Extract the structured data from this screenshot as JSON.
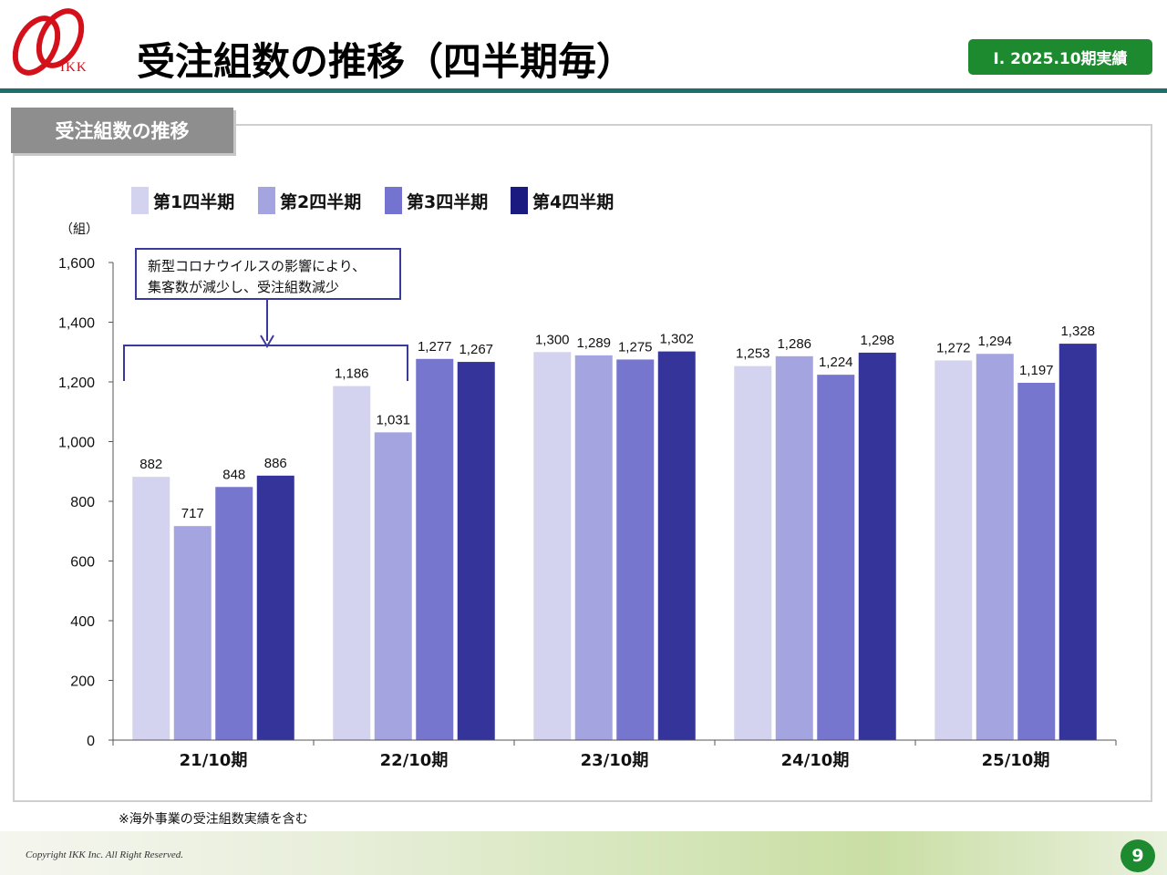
{
  "header": {
    "title": "受注組数の推移（四半期毎）",
    "badge": "Ⅰ. 2025.10期実績",
    "logo_text": "IKK"
  },
  "section_tab": "受注組数の推移",
  "callout_text": [
    "新型コロナウイルスの影響により、",
    "集客数が減少し、受注組数減少"
  ],
  "footnote": "※海外事業の受注組数実績を含む",
  "footer": {
    "copyright": "Copyright IKK Inc. All Right Reserved.",
    "page_number": "9"
  },
  "colors": {
    "accent_green": "#1d8a2f",
    "rule_teal": "#1e6e6b",
    "annotation": "#3a3a9a",
    "series": [
      "#d3d3f0",
      "#a4a4e0",
      "#7676cf",
      "#34349a"
    ],
    "legend_swatches": [
      "#d3d3f0",
      "#a4a4e0",
      "#7474d0",
      "#1a1a80"
    ]
  },
  "chart_data": {
    "type": "bar",
    "title": "",
    "ylabel": "（組）",
    "xlabel": "",
    "ylim": [
      0,
      1600
    ],
    "yticks": [
      0,
      200,
      400,
      600,
      800,
      1000,
      1200,
      1400,
      1600
    ],
    "ytick_labels": [
      "0",
      "200",
      "400",
      "600",
      "800",
      "1,000",
      "1,200",
      "1,400",
      "1,600"
    ],
    "categories": [
      "21/10期",
      "22/10期",
      "23/10期",
      "24/10期",
      "25/10期"
    ],
    "series": [
      {
        "name": "第1四半期",
        "values": [
          882,
          1186,
          1300,
          1253,
          1272
        ],
        "labels": [
          "882",
          "1,186",
          "1,300",
          "1,253",
          "1,272"
        ]
      },
      {
        "name": "第2四半期",
        "values": [
          717,
          1031,
          1289,
          1286,
          1294
        ],
        "labels": [
          "717",
          "1,031",
          "1,289",
          "1,286",
          "1,294"
        ]
      },
      {
        "name": "第3四半期",
        "values": [
          848,
          1277,
          1275,
          1224,
          1197
        ],
        "labels": [
          "848",
          "1,277",
          "1,275",
          "1,224",
          "1,197"
        ]
      },
      {
        "name": "第4四半期",
        "values": [
          886,
          1267,
          1302,
          1298,
          1328
        ],
        "labels": [
          "886",
          "1,267",
          "1,302",
          "1,298",
          "1,328"
        ]
      }
    ],
    "legend_position": "top-left",
    "grid": false
  }
}
